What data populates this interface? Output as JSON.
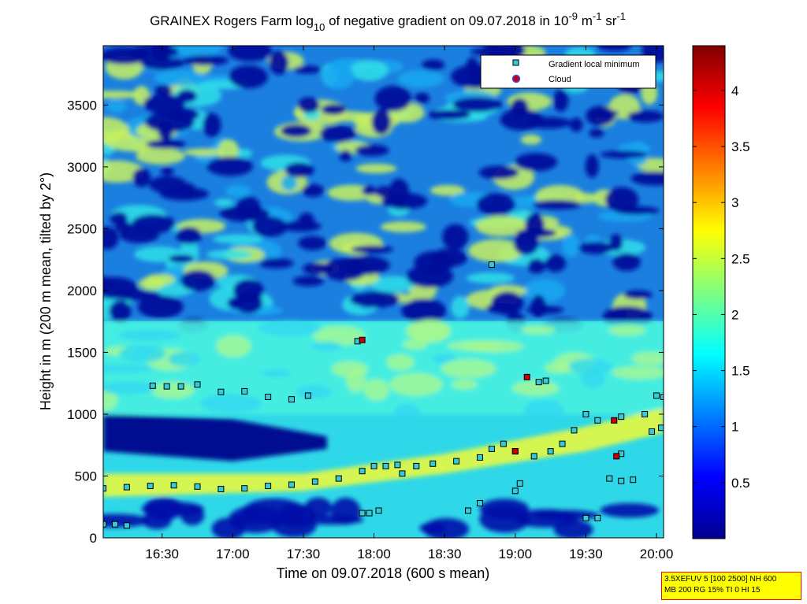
{
  "colors": {
    "background": "#ffffff",
    "colormap": [
      "#00008f",
      "#0000ff",
      "#00ffff",
      "#ffff00",
      "#ff0000",
      "#800000"
    ],
    "marker_fill": "#33ccdd",
    "cloud_fill": "#cc0000"
  },
  "chart_data": {
    "type": "heatmap",
    "title": {
      "prefix": "GRAINEX Rogers Farm log",
      "subscript": "10",
      "middle": " of negative gradient on 09.07.2018 in 10",
      "sup1": "-9",
      "unit1": " m",
      "sup2": "-1",
      "unit2": " sr",
      "sup3": "-1"
    },
    "xlabel": "Time on 09.07.2018 (600 s mean)",
    "ylabel": "Height in m (200 m mean, tilted by 2°)",
    "x_range": [
      "16:05",
      "20:03"
    ],
    "x_ticks": [
      "16:30",
      "17:00",
      "17:30",
      "18:00",
      "18:30",
      "19:00",
      "19:30",
      "20:00"
    ],
    "y_range": [
      0,
      3980
    ],
    "y_ticks": [
      "0",
      "500",
      "1000",
      "1500",
      "2000",
      "2500",
      "3000",
      "3500"
    ],
    "colorbar": {
      "range": [
        0,
        4.4
      ],
      "ticks": [
        "0.5",
        "1",
        "1.5",
        "2",
        "2.5",
        "3",
        "3.5",
        "4"
      ]
    },
    "legend": {
      "position": "top-right",
      "entries": [
        {
          "label": "Gradient local minimum",
          "marker": "square",
          "color": "#33ccdd"
        },
        {
          "label": "Cloud",
          "marker": "circle",
          "color": "#cc0000"
        }
      ]
    },
    "series": [
      {
        "name": "Gradient local minimum",
        "points": [
          [
            "16:05",
            110
          ],
          [
            "16:10",
            110
          ],
          [
            "16:15",
            100
          ],
          [
            "16:05",
            400
          ],
          [
            "16:15",
            410
          ],
          [
            "16:25",
            420
          ],
          [
            "16:35",
            425
          ],
          [
            "16:45",
            415
          ],
          [
            "16:55",
            395
          ],
          [
            "17:05",
            400
          ],
          [
            "17:15",
            420
          ],
          [
            "17:25",
            430
          ],
          [
            "17:35",
            455
          ],
          [
            "17:45",
            480
          ],
          [
            "17:55",
            540
          ],
          [
            "18:00",
            580
          ],
          [
            "18:05",
            580
          ],
          [
            "18:10",
            590
          ],
          [
            "18:12",
            520
          ],
          [
            "18:18",
            580
          ],
          [
            "18:25",
            600
          ],
          [
            "18:35",
            620
          ],
          [
            "18:45",
            650
          ],
          [
            "18:50",
            720
          ],
          [
            "18:55",
            760
          ],
          [
            "19:00",
            700
          ],
          [
            "19:08",
            660
          ],
          [
            "19:15",
            700
          ],
          [
            "19:20",
            760
          ],
          [
            "19:25",
            870
          ],
          [
            "19:30",
            1000
          ],
          [
            "19:35",
            950
          ],
          [
            "19:45",
            980
          ],
          [
            "19:55",
            1000
          ],
          [
            "20:00",
            1150
          ],
          [
            "20:03",
            1140
          ],
          [
            "16:26",
            1230
          ],
          [
            "16:32",
            1225
          ],
          [
            "16:38",
            1225
          ],
          [
            "16:45",
            1240
          ],
          [
            "16:55",
            1180
          ],
          [
            "17:05",
            1185
          ],
          [
            "17:15",
            1140
          ],
          [
            "17:25",
            1120
          ],
          [
            "17:32",
            1150
          ],
          [
            "17:53",
            1590
          ],
          [
            "17:55",
            200
          ],
          [
            "17:58",
            200
          ],
          [
            "18:02",
            220
          ],
          [
            "18:40",
            220
          ],
          [
            "18:45",
            280
          ],
          [
            "18:50",
            2210
          ],
          [
            "19:10",
            1260
          ],
          [
            "19:13",
            1270
          ],
          [
            "19:00",
            380
          ],
          [
            "19:02",
            440
          ],
          [
            "19:30",
            160
          ],
          [
            "19:35",
            160
          ],
          [
            "19:40",
            480
          ],
          [
            "19:45",
            460
          ],
          [
            "19:50",
            470
          ],
          [
            "19:45",
            680
          ],
          [
            "19:58",
            860
          ],
          [
            "20:02",
            890
          ]
        ]
      },
      {
        "name": "Cloud",
        "points": [
          [
            "17:55",
            1600
          ],
          [
            "19:05",
            1300
          ],
          [
            "19:00",
            700
          ],
          [
            "19:42",
            950
          ],
          [
            "19:43",
            660
          ]
        ]
      }
    ]
  },
  "param_box": {
    "line1": "3.5XEFUV 5 [100 2500] NH 600",
    "line2": "MB 200 RG 15% TI 0 HI 15"
  }
}
